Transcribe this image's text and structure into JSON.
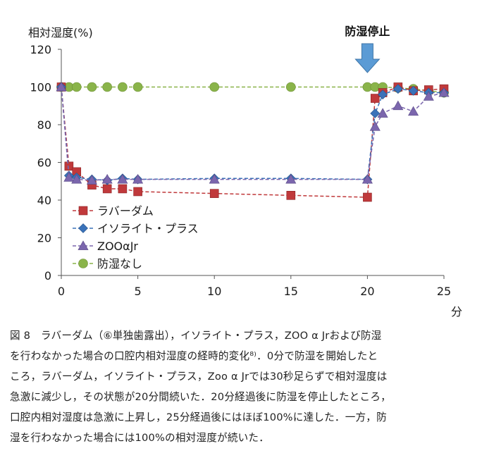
{
  "chart_data": {
    "type": "line",
    "ylabel": "相対湿度(%)",
    "xlabel": "分",
    "x": [
      0,
      0.5,
      1,
      2,
      3,
      4,
      5,
      10,
      15,
      20,
      20.5,
      21,
      22,
      23,
      24,
      25
    ],
    "xlim": [
      0,
      25
    ],
    "ylim": [
      0,
      120
    ],
    "x_ticks": [
      0,
      5,
      10,
      15,
      20,
      25
    ],
    "y_ticks": [
      0,
      20,
      40,
      60,
      80,
      100,
      120
    ],
    "grid": false,
    "legend_position": "lower-left",
    "annotation": {
      "text": "防湿停止",
      "x": 20
    },
    "series": [
      {
        "name": "ラバーダム",
        "marker": "square",
        "color": "#c0393b",
        "x": [
          0,
          0.5,
          1,
          2,
          3,
          4,
          5,
          10,
          15,
          20,
          20.5,
          21,
          22,
          23,
          24,
          25
        ],
        "values": [
          100,
          58,
          55,
          48,
          46,
          46,
          44.5,
          43.5,
          42.5,
          41.5,
          94,
          97,
          100,
          98,
          98.5,
          99
        ]
      },
      {
        "name": "イソライト・プラス",
        "marker": "diamond",
        "color": "#3a72b9",
        "x": [
          0,
          0.5,
          1,
          2,
          3,
          4,
          5,
          10,
          15,
          20,
          20.5,
          21,
          22,
          23,
          24,
          25
        ],
        "values": [
          100,
          53,
          52,
          51,
          50.5,
          51.5,
          51,
          51.5,
          51.5,
          51,
          86,
          96,
          99,
          98,
          97,
          97
        ]
      },
      {
        "name": "ZOOαJr",
        "marker": "triangle",
        "color": "#7b66ad",
        "x": [
          0,
          0.5,
          1,
          2,
          3,
          4,
          5,
          10,
          15,
          20,
          20.5,
          21,
          22,
          23,
          24,
          25
        ],
        "values": [
          100,
          52,
          51,
          50.5,
          51,
          51,
          51,
          51,
          51,
          51,
          79,
          86,
          90,
          87,
          95,
          97
        ]
      },
      {
        "name": "防湿なし",
        "marker": "circle",
        "color": "#8ab44a",
        "x": [
          0,
          0.5,
          1,
          2,
          3,
          4,
          5,
          10,
          15,
          20,
          20.5,
          21,
          22,
          23,
          24,
          25
        ],
        "values": [
          100,
          100,
          100,
          100,
          100,
          100,
          100,
          100,
          100,
          100,
          100,
          100,
          99.5,
          99,
          98,
          97
        ]
      }
    ]
  },
  "caption": {
    "lines": [
      "図 8　ラバーダム（⑥単独歯露出），イソライト・プラス，ZOO α Jrおよび防湿",
      "を行わなかった場合の口腔内相対湿度の経時的変化⁸⁾．0分で防湿を開始したと",
      "ころ，ラバーダム，イソライト・プラス，Zoo α Jrでは30秒足らずで相対湿度は",
      "急激に減少し，その状態が20分間続いた．20分経過後に防湿を停止したところ，",
      "口腔内相対湿度は急激に上昇し，25分経過後にはほぼ100%に達した．一方，防",
      "湿を行わなかった場合には100%の相対湿度が続いた．"
    ]
  }
}
